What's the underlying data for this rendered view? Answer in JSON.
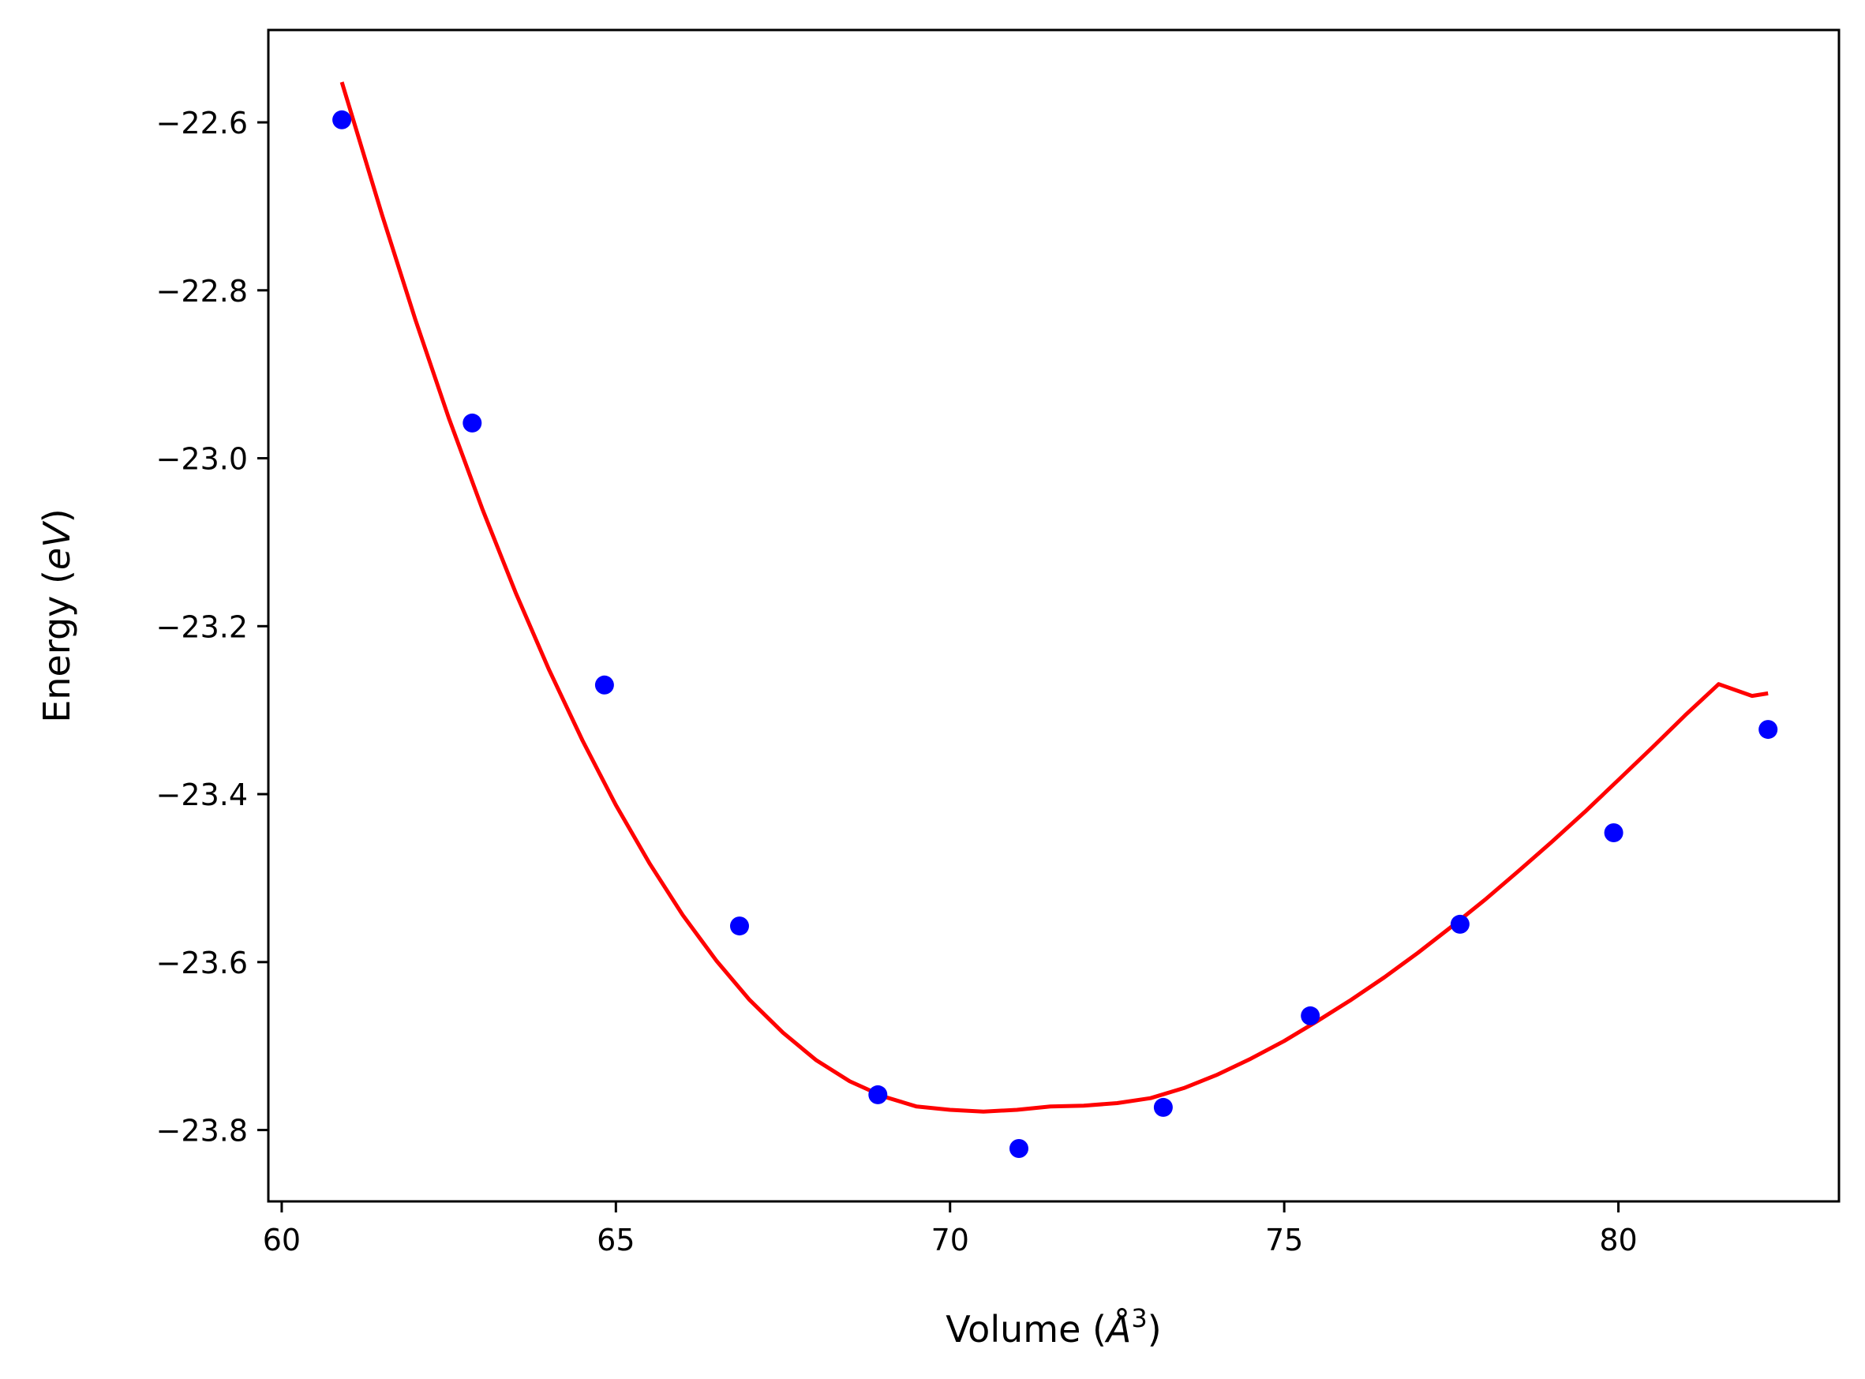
{
  "chart_data": {
    "type": "scatter",
    "title": "",
    "xlabel_main": "Volume (",
    "xlabel_unit": "Å",
    "xlabel_sup": "3",
    "xlabel_close": ")",
    "ylabel_main": "Energy (",
    "ylabel_unit": "eV",
    "ylabel_close": ")",
    "xlim": [
      59.8,
      83.3
    ],
    "ylim": [
      -23.885,
      -22.49
    ],
    "x_ticks": [
      {
        "value": 60,
        "label": "60"
      },
      {
        "value": 65,
        "label": "65"
      },
      {
        "value": 70,
        "label": "70"
      },
      {
        "value": 75,
        "label": "75"
      },
      {
        "value": 80,
        "label": "80"
      }
    ],
    "y_ticks": [
      {
        "value": -22.6,
        "label": "−22.6"
      },
      {
        "value": -22.8,
        "label": "−22.8"
      },
      {
        "value": -23.0,
        "label": "−23.0"
      },
      {
        "value": -23.2,
        "label": "−23.2"
      },
      {
        "value": -23.4,
        "label": "−23.4"
      },
      {
        "value": -23.6,
        "label": "−23.6"
      },
      {
        "value": -23.8,
        "label": "−23.8"
      }
    ],
    "grid": false,
    "series": [
      {
        "kind": "points",
        "color": "#0000ff",
        "x": [
          60.9,
          62.85,
          64.83,
          66.85,
          68.92,
          71.03,
          73.19,
          75.39,
          77.63,
          79.93,
          82.24
        ],
        "y": [
          -22.597,
          -22.958,
          -23.27,
          -23.557,
          -23.758,
          -23.822,
          -23.773,
          -23.664,
          -23.555,
          -23.446,
          -23.323
        ]
      },
      {
        "kind": "fit_curve",
        "color": "#ff0000",
        "x": [
          60.9,
          61.5,
          62.0,
          62.5,
          63.0,
          63.5,
          64.0,
          64.5,
          65.0,
          65.5,
          66.0,
          66.5,
          67.0,
          67.5,
          68.0,
          68.5,
          69.0,
          69.5,
          70.0,
          70.5,
          71.0,
          71.5,
          72.0,
          72.5,
          73.0,
          73.5,
          74.0,
          74.5,
          75.0,
          75.5,
          76.0,
          76.5,
          77.0,
          77.5,
          78.0,
          78.5,
          79.0,
          79.5,
          80.0,
          80.5,
          81.0,
          81.5,
          82.0,
          82.24
        ],
        "y": [
          -22.552,
          -22.71,
          -22.835,
          -22.952,
          -23.06,
          -23.16,
          -23.252,
          -23.336,
          -23.413,
          -23.482,
          -23.544,
          -23.598,
          -23.645,
          -23.684,
          -23.717,
          -23.742,
          -23.76,
          -23.772,
          -23.776,
          -23.778,
          -23.776,
          -23.772,
          -23.771,
          -23.768,
          -23.762,
          -23.75,
          -23.734,
          -23.715,
          -23.694,
          -23.67,
          -23.645,
          -23.618,
          -23.589,
          -23.558,
          -23.526,
          -23.492,
          -23.457,
          -23.421,
          -23.383,
          -23.345,
          -23.306,
          -23.269,
          -23.283,
          -23.28
        ]
      }
    ]
  }
}
